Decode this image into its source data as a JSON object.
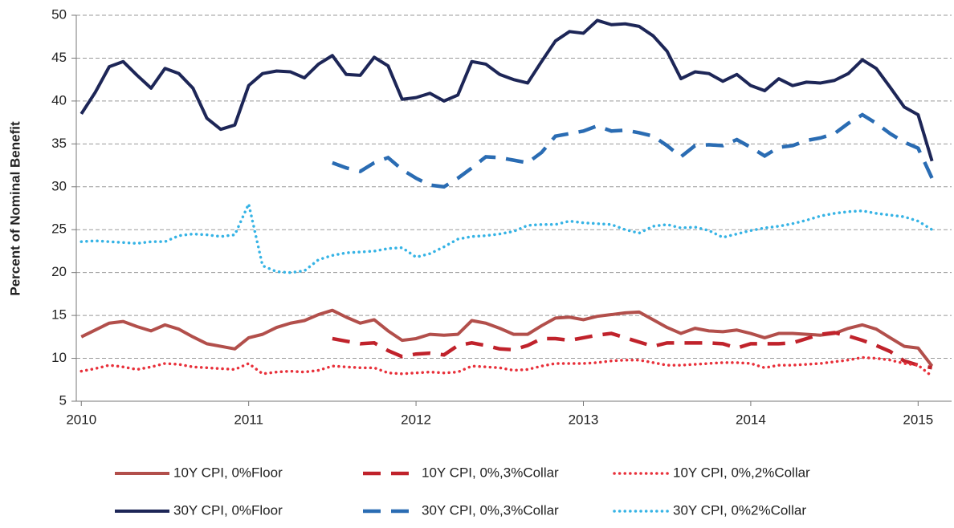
{
  "chart_data": {
    "type": "line",
    "y_label": "Percent of Nominal Benefit",
    "x": [
      2010,
      2010.083,
      2010.167,
      2010.25,
      2010.333,
      2010.417,
      2010.5,
      2010.583,
      2010.667,
      2010.75,
      2010.833,
      2010.917,
      2011,
      2011.083,
      2011.167,
      2011.25,
      2011.333,
      2011.417,
      2011.5,
      2011.583,
      2011.667,
      2011.75,
      2011.833,
      2011.917,
      2012,
      2012.083,
      2012.167,
      2012.25,
      2012.333,
      2012.417,
      2012.5,
      2012.583,
      2012.667,
      2012.75,
      2012.833,
      2012.917,
      2013,
      2013.083,
      2013.167,
      2013.25,
      2013.333,
      2013.417,
      2013.5,
      2013.583,
      2013.667,
      2013.75,
      2013.833,
      2013.917,
      2014,
      2014.083,
      2014.167,
      2014.25,
      2014.333,
      2014.417,
      2014.5,
      2014.583,
      2014.667,
      2014.75,
      2014.833,
      2014.917,
      2015,
      2015.083
    ],
    "xlim": [
      2009.97,
      2015.2
    ],
    "xticks": [
      2010,
      2011,
      2012,
      2013,
      2014,
      2015
    ],
    "ylim": [
      5,
      50
    ],
    "yticks": [
      5,
      10,
      15,
      20,
      25,
      30,
      35,
      40,
      45,
      50
    ],
    "grid": true,
    "series": [
      {
        "name": "10Y CPI, 0%Floor",
        "color": "#b24f4b",
        "style": "solid",
        "values": [
          12.5,
          13.3,
          14.1,
          14.3,
          13.7,
          13.2,
          13.9,
          13.4,
          12.5,
          11.7,
          11.4,
          11.1,
          12.4,
          12.8,
          13.6,
          14.1,
          14.4,
          15.1,
          15.6,
          14.8,
          14.1,
          14.5,
          13.2,
          12.1,
          12.3,
          12.8,
          12.7,
          12.8,
          14.4,
          14.1,
          13.5,
          12.8,
          12.8,
          13.8,
          14.7,
          14.8,
          14.5,
          14.9,
          15.1,
          15.3,
          15.4,
          14.5,
          13.6,
          12.9,
          13.5,
          13.2,
          13.1,
          13.3,
          12.9,
          12.4,
          12.9,
          12.9,
          12.8,
          12.7,
          12.9,
          13.5,
          13.9,
          13.4,
          12.4,
          11.4,
          11.2,
          9.1
        ]
      },
      {
        "name": "10Y CPI, 0%,3%Collar",
        "color": "#c0222b",
        "style": "dashed",
        "values": [
          null,
          null,
          null,
          null,
          null,
          null,
          null,
          null,
          null,
          null,
          null,
          null,
          null,
          null,
          null,
          null,
          null,
          null,
          12.3,
          12,
          11.7,
          11.8,
          10.9,
          10.2,
          10.5,
          10.6,
          10.4,
          11.5,
          11.8,
          11.5,
          11.1,
          11,
          11.5,
          12.3,
          12.3,
          12.1,
          12.4,
          12.7,
          12.9,
          12.4,
          11.9,
          11.4,
          11.8,
          11.8,
          11.8,
          11.8,
          11.7,
          11.2,
          11.7,
          11.7,
          11.7,
          11.8,
          12.3,
          12.8,
          13,
          12.6,
          12.1,
          11.5,
          10.8,
          9.7,
          9.2,
          8.9
        ]
      },
      {
        "name": "10Y CPI, 0%,2%Collar",
        "color": "#e8303a",
        "style": "dotted",
        "values": [
          8.5,
          8.8,
          9.2,
          9,
          8.7,
          9,
          9.4,
          9.3,
          9,
          8.9,
          8.8,
          8.7,
          9.4,
          8.2,
          8.4,
          8.5,
          8.4,
          8.6,
          9.1,
          9,
          8.9,
          8.9,
          8.3,
          8.2,
          8.3,
          8.4,
          8.3,
          8.4,
          9.1,
          9,
          8.9,
          8.6,
          8.7,
          9.1,
          9.4,
          9.4,
          9.4,
          9.5,
          9.7,
          9.8,
          9.8,
          9.5,
          9.2,
          9.2,
          9.3,
          9.4,
          9.5,
          9.5,
          9.4,
          8.9,
          9.2,
          9.2,
          9.3,
          9.4,
          9.6,
          9.8,
          10.1,
          10,
          9.8,
          9.4,
          9.2,
          7.9
        ]
      },
      {
        "name": "30Y CPI, 0%Floor",
        "color": "#1d2657",
        "style": "solid",
        "values": [
          38.5,
          41,
          44,
          44.6,
          43,
          41.5,
          43.8,
          43.2,
          41.5,
          38,
          36.7,
          37.2,
          41.8,
          43.2,
          43.5,
          43.4,
          42.7,
          44.3,
          45.3,
          43.1,
          43,
          45.1,
          44.1,
          40.2,
          40.4,
          40.9,
          40,
          40.7,
          44.6,
          44.3,
          43.1,
          42.5,
          42.1,
          44.6,
          47,
          48.1,
          47.9,
          49.4,
          48.9,
          49,
          48.7,
          47.6,
          45.8,
          42.6,
          43.4,
          43.2,
          42.3,
          43.1,
          41.8,
          41.2,
          42.6,
          41.8,
          42.2,
          42.1,
          42.4,
          43.2,
          44.8,
          43.8,
          41.6,
          39.3,
          38.4,
          33
        ]
      },
      {
        "name": "30Y CPI, 0%,3%Collar",
        "color": "#2a6cb3",
        "style": "dashed",
        "values": [
          null,
          null,
          null,
          null,
          null,
          null,
          null,
          null,
          null,
          null,
          null,
          null,
          null,
          null,
          null,
          null,
          null,
          null,
          32.8,
          32.2,
          31.8,
          32.8,
          33.4,
          32,
          31,
          30.2,
          30,
          31,
          32.2,
          33.5,
          33.4,
          33.1,
          32.8,
          34,
          35.9,
          36.2,
          36.5,
          37.1,
          36.5,
          36.6,
          36.3,
          35.9,
          34.8,
          33.5,
          34.8,
          34.9,
          34.8,
          35.5,
          34.6,
          33.6,
          34.6,
          34.8,
          35.4,
          35.7,
          36.2,
          37.4,
          38.4,
          37.4,
          36.2,
          35.2,
          34.5,
          31
        ]
      },
      {
        "name": "30Y CPI, 0%2%Collar",
        "color": "#35b3e5",
        "style": "dotted",
        "values": [
          23.6,
          23.7,
          23.6,
          23.5,
          23.4,
          23.6,
          23.6,
          24.3,
          24.5,
          24.4,
          24.2,
          24.4,
          28,
          20.8,
          20.1,
          20,
          20.2,
          21.5,
          22,
          22.3,
          22.4,
          22.5,
          22.8,
          22.9,
          21.8,
          22.2,
          23,
          23.9,
          24.2,
          24.3,
          24.5,
          24.8,
          25.5,
          25.6,
          25.6,
          26,
          25.8,
          25.7,
          25.6,
          25,
          24.6,
          25.4,
          25.6,
          25.2,
          25.3,
          24.9,
          24.1,
          24.5,
          24.9,
          25.2,
          25.4,
          25.7,
          26.1,
          26.6,
          26.9,
          27.1,
          27.2,
          26.9,
          26.7,
          26.5,
          26,
          25
        ]
      }
    ]
  }
}
